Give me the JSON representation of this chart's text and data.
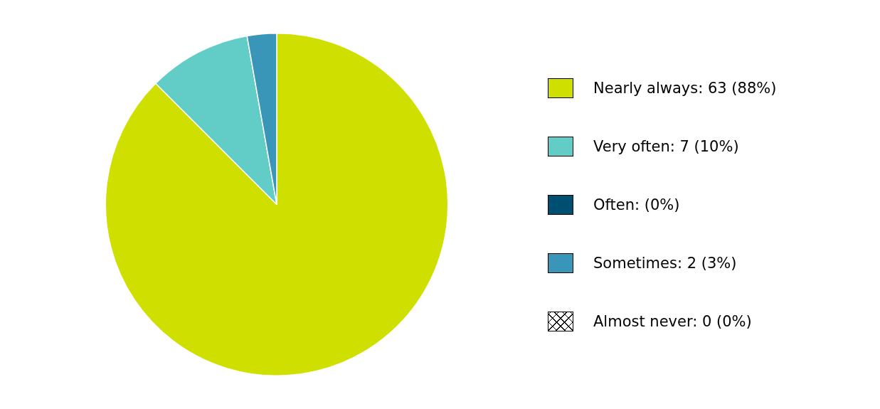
{
  "chart_data": {
    "type": "pie",
    "categories": [
      "Nearly always: 63 (88%)",
      "Very often: 7 (10%)",
      "Often: (0%)",
      "Sometimes: 2 (3%)",
      "Almost never: 0 (0%)"
    ],
    "values": [
      63,
      7,
      0,
      2,
      0
    ],
    "colors": [
      "#cfdf00",
      "#62ccc7",
      "#004f73",
      "#3996b8",
      "#ffffff"
    ],
    "legend": "right"
  }
}
